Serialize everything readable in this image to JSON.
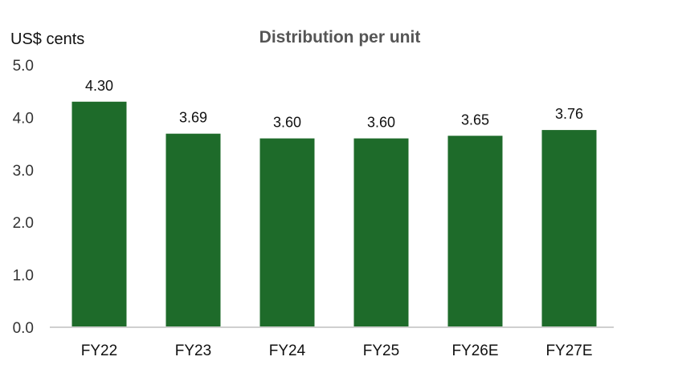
{
  "chart_data": {
    "type": "bar",
    "title": "Distribution per unit",
    "ylabel": "US$ cents",
    "xlabel": "",
    "categories": [
      "FY22",
      "FY23",
      "FY24",
      "FY25",
      "FY26E",
      "FY27E"
    ],
    "values": [
      4.3,
      3.69,
      3.6,
      3.6,
      3.65,
      3.76
    ],
    "data_labels": [
      "4.30",
      "3.69",
      "3.60",
      "3.60",
      "3.65",
      "3.76"
    ],
    "yticks": [
      "0.0",
      "1.0",
      "2.0",
      "3.0",
      "4.0",
      "5.0"
    ],
    "ylim": [
      0,
      5
    ],
    "grid": false,
    "legend": "none",
    "colors": {
      "bar": "#1e6b2a"
    }
  }
}
